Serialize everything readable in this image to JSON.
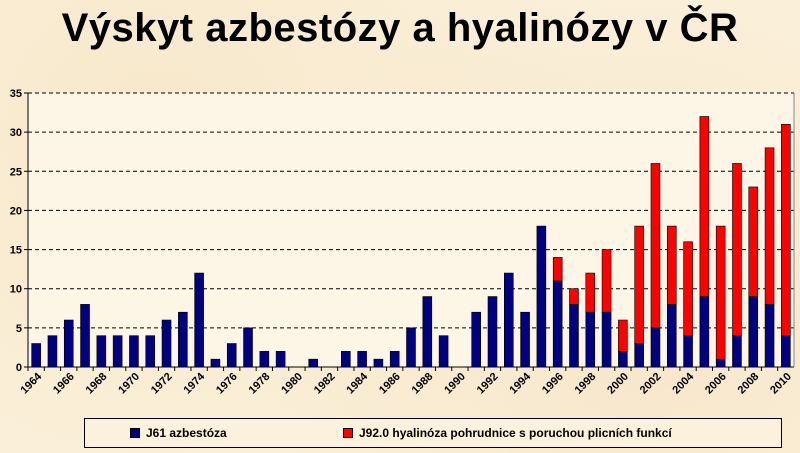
{
  "title": "Výskyt azbestózy a hyalinózy v ČR",
  "chart_data": {
    "type": "bar",
    "stacked": true,
    "years": [
      1964,
      1965,
      1966,
      1967,
      1968,
      1969,
      1970,
      1971,
      1972,
      1973,
      1974,
      1975,
      1976,
      1977,
      1978,
      1979,
      1980,
      1981,
      1982,
      1983,
      1984,
      1985,
      1986,
      1987,
      1988,
      1989,
      1990,
      1991,
      1992,
      1993,
      1994,
      1995,
      1996,
      1997,
      1998,
      1999,
      2000,
      2001,
      2002,
      2003,
      2004,
      2005,
      2006,
      2007,
      2008,
      2009,
      2010
    ],
    "x_tick_labels": [
      "1964",
      "1966",
      "1968",
      "1970",
      "1972",
      "1974",
      "1976",
      "1978",
      "1980",
      "1982",
      "1984",
      "1986",
      "1988",
      "1990",
      "1992",
      "1994",
      "1996",
      "1998",
      "2000",
      "2002",
      "2004",
      "2006",
      "2008",
      "2010"
    ],
    "series": [
      {
        "name": "J61 azbestóza",
        "color": "#000080",
        "values": [
          3,
          4,
          6,
          8,
          4,
          4,
          4,
          4,
          6,
          7,
          12,
          1,
          3,
          5,
          2,
          2,
          0,
          1,
          0,
          2,
          2,
          1,
          2,
          5,
          9,
          4,
          0,
          7,
          9,
          12,
          7,
          18,
          11,
          8,
          7,
          7,
          2,
          3,
          5,
          8,
          4,
          9,
          1,
          4,
          9,
          8,
          4
        ]
      },
      {
        "name": "J92.0 hyalinóza pohrudnice s poruchou plicních funkcí",
        "color": "#ff0000",
        "values": [
          0,
          0,
          0,
          0,
          0,
          0,
          0,
          0,
          0,
          0,
          0,
          0,
          0,
          0,
          0,
          0,
          0,
          0,
          0,
          0,
          0,
          0,
          0,
          0,
          0,
          0,
          0,
          0,
          0,
          0,
          0,
          0,
          3,
          2,
          5,
          8,
          4,
          15,
          21,
          10,
          12,
          23,
          17,
          22,
          14,
          20,
          27
        ]
      }
    ],
    "ylim": [
      0,
      35
    ],
    "y_ticks": [
      0,
      5,
      10,
      15,
      20,
      25,
      30,
      35
    ],
    "grid": true,
    "legend_position": "bottom"
  }
}
